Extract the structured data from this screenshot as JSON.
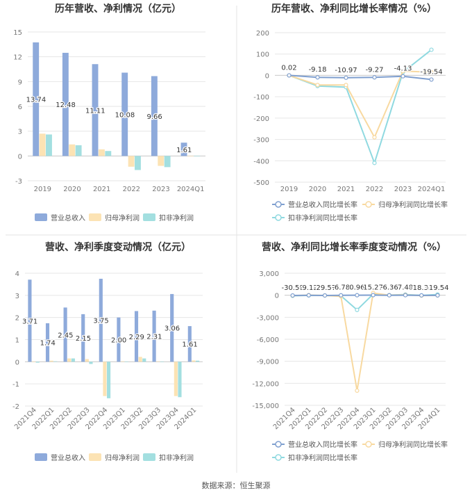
{
  "source": "数据来源：恒生聚源",
  "colors": {
    "revenue": "#8eaadb",
    "net_profit": "#fce3b4",
    "deducted_profit": "#a3dfe0",
    "revenue_line": "#7f9fcf",
    "net_line": "#f8d9a0",
    "deducted_line": "#8fd9e0",
    "grid": "#e6e6e6",
    "axis_text": "#777777",
    "divider": "#e3e3e3"
  },
  "chart_data": [
    {
      "id": "annual-revenue-profit",
      "type": "bar",
      "title": "历年营收、净利情况（亿元）",
      "categories": [
        "2019",
        "2020",
        "2021",
        "2022",
        "2023",
        "2024Q1"
      ],
      "ylim": [
        -3,
        15
      ],
      "yticks": [
        "-3",
        "0",
        "3",
        "6",
        "9",
        "12",
        "15"
      ],
      "series": [
        {
          "name": "营业总收入",
          "values": [
            13.74,
            12.48,
            11.11,
            10.08,
            9.66,
            1.61
          ],
          "labels": [
            "13.74",
            "12.48",
            "11.11",
            "10.08",
            "9.66",
            "1.61"
          ]
        },
        {
          "name": "归母净利润",
          "values": [
            2.7,
            1.4,
            0.8,
            -1.3,
            -1.2,
            -0.05
          ]
        },
        {
          "name": "扣非净利润",
          "values": [
            2.6,
            1.3,
            0.6,
            -1.7,
            -1.35,
            -0.05
          ]
        }
      ],
      "legend": "bottom",
      "grid": true
    },
    {
      "id": "annual-growth-rate",
      "type": "line",
      "title": "历年营收、净利同比增长率情况（%）",
      "categories": [
        "2019",
        "2020",
        "2021",
        "2022",
        "2023",
        "2024Q1"
      ],
      "ylim": [
        -500,
        200
      ],
      "yticks": [
        "-500",
        "-400",
        "-300",
        "-200",
        "-100",
        "0",
        "100",
        "200"
      ],
      "series": [
        {
          "name": "营业总收入同比增长率",
          "values": [
            0.02,
            -9.18,
            -10.97,
            -9.27,
            -4.13,
            -19.54
          ],
          "labels": [
            "0.02",
            "-9.18",
            "-10.97",
            "-9.27",
            "-4.13",
            "-19.54"
          ]
        },
        {
          "name": "归母净利润同比增长率",
          "values": [
            0,
            -45,
            -45,
            -290,
            20,
            15
          ]
        },
        {
          "name": "扣非净利润同比增长率",
          "values": [
            0,
            -50,
            -55,
            -410,
            15,
            120
          ]
        }
      ],
      "legend": "bottom",
      "grid": true
    },
    {
      "id": "quarterly-revenue-profit",
      "type": "bar",
      "title": "营收、净利季度变动情况（亿元）",
      "categories": [
        "2021Q4",
        "2022Q1",
        "2022Q2",
        "2022Q3",
        "2022Q4",
        "2023Q1",
        "2023Q2",
        "2023Q3",
        "2023Q4",
        "2024Q1"
      ],
      "ylim": [
        -2,
        4
      ],
      "yticks": [
        "-2",
        "-1",
        "0",
        "1",
        "2",
        "3",
        "4"
      ],
      "series": [
        {
          "name": "营业总收入",
          "values": [
            3.71,
            1.74,
            2.45,
            2.15,
            3.75,
            2.0,
            2.29,
            2.31,
            3.06,
            1.61
          ],
          "labels": [
            "3.71",
            "1.74",
            "2.45",
            "2.15",
            "3.75",
            "2.00",
            "2.29",
            "2.31",
            "3.06",
            "1.61"
          ]
        },
        {
          "name": "归母净利润",
          "values": [
            -0.02,
            0.05,
            0.15,
            0.12,
            -1.55,
            0.02,
            0.22,
            0.02,
            -1.55,
            0.06
          ]
        },
        {
          "name": "扣非净利润",
          "values": [
            -0.04,
            0.02,
            0.15,
            -0.1,
            -1.65,
            0.01,
            0.15,
            0.0,
            -1.6,
            0.05
          ]
        }
      ],
      "legend": "bottom",
      "grid": true
    },
    {
      "id": "quarterly-growth-rate",
      "type": "line",
      "title": "营收、净利同比增长率季度变动情况（%）",
      "categories": [
        "2021Q4",
        "2022Q1",
        "2022Q2",
        "2022Q3",
        "2022Q4",
        "2023Q1",
        "2023Q2",
        "2023Q3",
        "2023Q4",
        "2024Q1"
      ],
      "ylim": [
        -15000,
        3000
      ],
      "yticks": [
        "-15,000",
        "-12,000",
        "-9,000",
        "-6,000",
        "-3,000",
        "0",
        "3,000"
      ],
      "series": [
        {
          "name": "营业总收入同比增长率",
          "values": [
            -30.58,
            -9.12,
            -29.57,
            -6.78,
            0.96,
            15.27,
            -6.36,
            7.48,
            -18.32,
            -19.54
          ],
          "labels": [
            "-30.58",
            "-9.12",
            "-29.57",
            "-6.78",
            "0.96",
            "15.27",
            "-6.36",
            "7.48",
            "-18.32",
            "-19.54"
          ]
        },
        {
          "name": "归母净利润同比增长率",
          "values": [
            -50,
            20,
            -30,
            -150,
            -13000,
            300,
            10,
            50,
            -50,
            -20
          ]
        },
        {
          "name": "扣非净利润同比增长率",
          "values": [
            -80,
            -20,
            -30,
            -80,
            -2000,
            150,
            20,
            100,
            -20,
            100
          ]
        }
      ],
      "legend": "bottom",
      "grid": true
    }
  ]
}
